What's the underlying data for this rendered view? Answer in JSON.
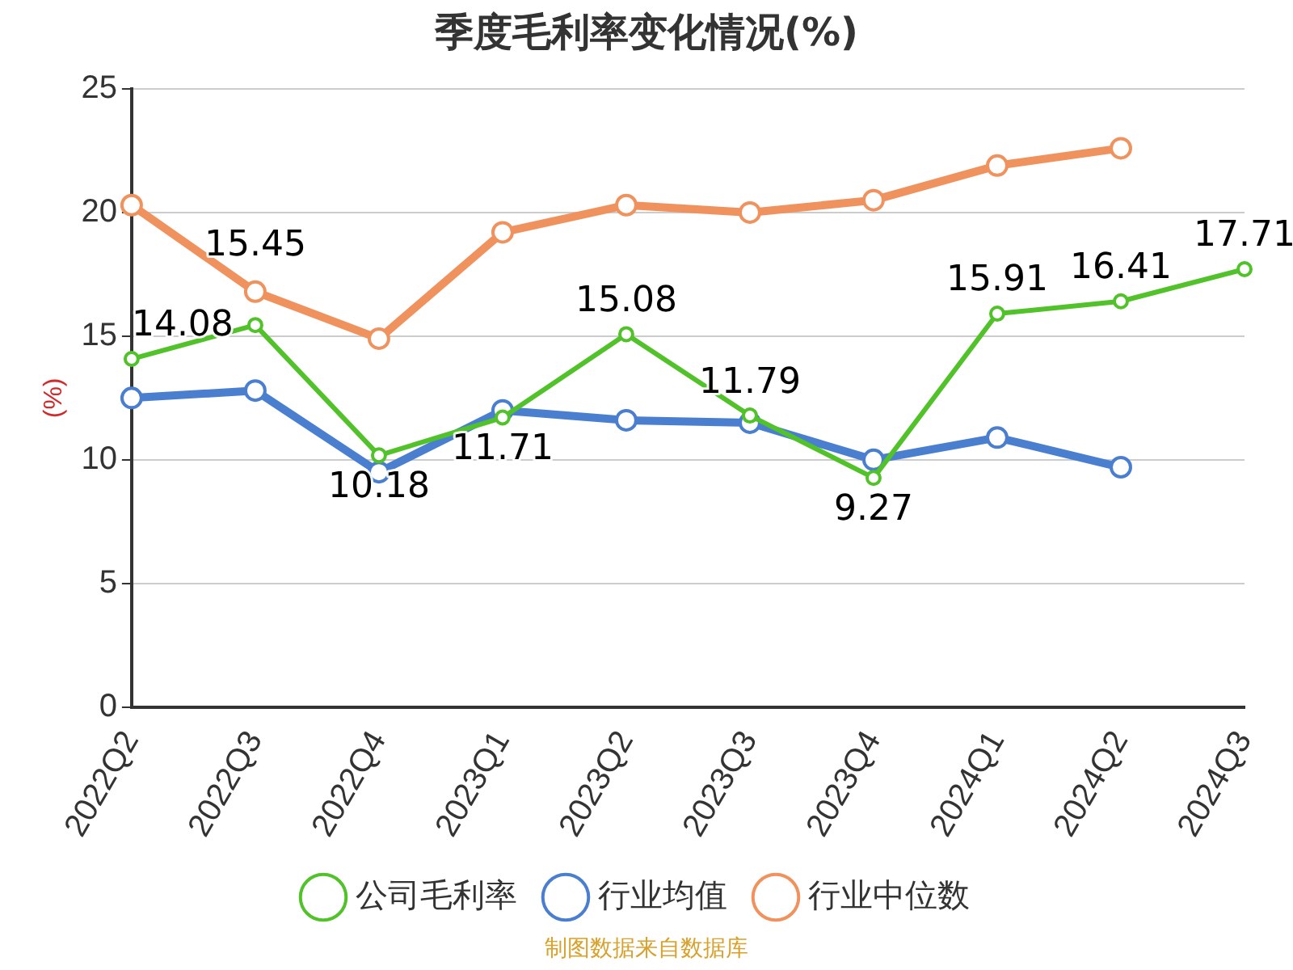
{
  "chart_data": {
    "type": "line",
    "title": "季度毛利率变化情况(%)",
    "ylabel": "(%)",
    "categories": [
      "2022Q2",
      "2022Q3",
      "2022Q4",
      "2023Q1",
      "2023Q2",
      "2023Q3",
      "2023Q4",
      "2024Q1",
      "2024Q2",
      "2024Q3"
    ],
    "series": [
      {
        "name": "公司毛利率",
        "color": "#52c22a",
        "values": [
          14.08,
          15.45,
          10.18,
          11.71,
          15.08,
          11.79,
          9.27,
          15.91,
          16.41,
          17.71
        ],
        "value_labels": [
          "14.08",
          "15.45",
          "10.18",
          "11.71",
          "15.08",
          "11.79",
          "9.27",
          "15.91",
          "16.41",
          "17.71"
        ]
      },
      {
        "name": "行业均值",
        "color": "#4a7fd0",
        "values": [
          12.5,
          12.8,
          9.5,
          12.0,
          11.6,
          11.5,
          10.0,
          10.9,
          9.7,
          null
        ]
      },
      {
        "name": "行业中位数",
        "color": "#f0925e",
        "values": [
          20.3,
          16.8,
          14.9,
          19.2,
          20.3,
          20.0,
          20.5,
          21.9,
          22.6,
          null
        ]
      }
    ],
    "ylim": [
      0,
      25
    ],
    "yticks": [
      0,
      5,
      10,
      15,
      20,
      25
    ],
    "grid": "y",
    "legend": "bottom",
    "marker": "circle",
    "line_style": "solid",
    "annotations": [
      "制图数据来自数据库"
    ]
  }
}
